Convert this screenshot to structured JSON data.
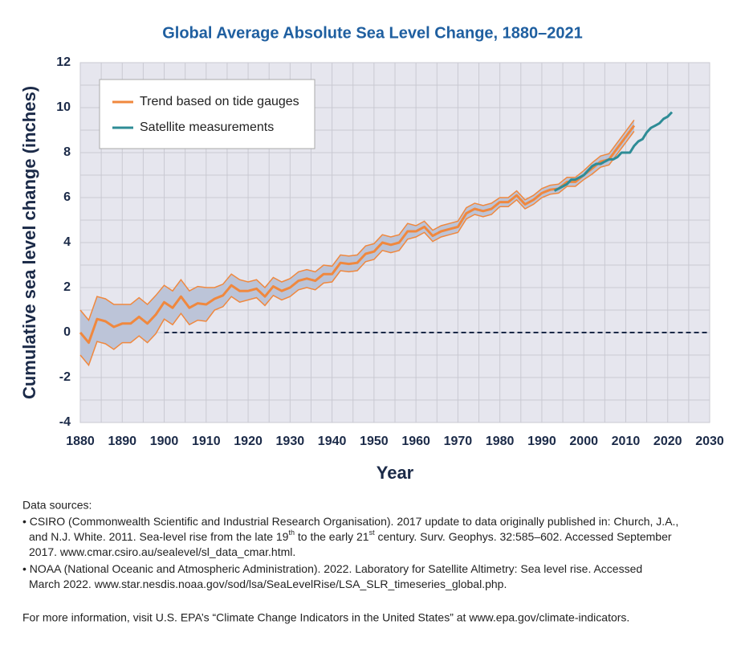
{
  "chart_data": {
    "type": "line",
    "title": "Global Average Absolute Sea Level Change, 1880–2021",
    "xlabel": "Year",
    "ylabel": "Cumulative sea level change (inches)",
    "xlim": [
      1880,
      2030
    ],
    "xticks": [
      1880,
      1890,
      1900,
      1910,
      1920,
      1930,
      1940,
      1950,
      1960,
      1970,
      1980,
      1990,
      2000,
      2010,
      2020,
      2030
    ],
    "ylim": [
      -4,
      12
    ],
    "yticks": [
      -4,
      -2,
      0,
      2,
      4,
      6,
      8,
      10,
      12
    ],
    "grid": true,
    "legend": "upper left",
    "series": [
      {
        "name": "Trend based on tide gauges",
        "color": "#f0883e",
        "band_color": "#bcc4d8",
        "x": [
          1880,
          1882,
          1884,
          1886,
          1888,
          1890,
          1892,
          1894,
          1896,
          1898,
          1900,
          1902,
          1904,
          1906,
          1908,
          1910,
          1912,
          1914,
          1916,
          1918,
          1920,
          1922,
          1924,
          1926,
          1928,
          1930,
          1932,
          1934,
          1936,
          1938,
          1940,
          1942,
          1944,
          1946,
          1948,
          1950,
          1952,
          1954,
          1956,
          1958,
          1960,
          1962,
          1964,
          1966,
          1968,
          1970,
          1972,
          1974,
          1976,
          1978,
          1980,
          1982,
          1984,
          1986,
          1988,
          1990,
          1992,
          1994,
          1996,
          1998,
          2000,
          2002,
          2004,
          2006,
          2008,
          2010,
          2012
        ],
        "values": [
          0.0,
          -0.45,
          0.6,
          0.5,
          0.25,
          0.4,
          0.4,
          0.7,
          0.4,
          0.8,
          1.35,
          1.1,
          1.6,
          1.1,
          1.3,
          1.25,
          1.5,
          1.65,
          2.1,
          1.85,
          1.85,
          1.95,
          1.6,
          2.05,
          1.85,
          2.0,
          2.3,
          2.4,
          2.3,
          2.6,
          2.6,
          3.1,
          3.05,
          3.1,
          3.5,
          3.6,
          4.0,
          3.9,
          4.0,
          4.5,
          4.5,
          4.7,
          4.3,
          4.5,
          4.6,
          4.7,
          5.3,
          5.5,
          5.4,
          5.5,
          5.8,
          5.8,
          6.1,
          5.7,
          5.9,
          6.2,
          6.35,
          6.4,
          6.7,
          6.7,
          7.0,
          7.3,
          7.6,
          7.7,
          8.2,
          8.7,
          9.2
        ],
        "lower": [
          -1.0,
          -1.45,
          -0.4,
          -0.5,
          -0.75,
          -0.45,
          -0.45,
          -0.15,
          -0.45,
          -0.05,
          0.6,
          0.35,
          0.85,
          0.35,
          0.55,
          0.5,
          1.0,
          1.15,
          1.6,
          1.35,
          1.45,
          1.55,
          1.2,
          1.65,
          1.45,
          1.6,
          1.9,
          2.0,
          1.9,
          2.2,
          2.25,
          2.75,
          2.7,
          2.75,
          3.15,
          3.25,
          3.65,
          3.55,
          3.65,
          4.15,
          4.25,
          4.45,
          4.05,
          4.25,
          4.35,
          4.45,
          5.05,
          5.25,
          5.15,
          5.25,
          5.6,
          5.6,
          5.9,
          5.5,
          5.7,
          6.0,
          6.15,
          6.2,
          6.5,
          6.5,
          6.8,
          7.05,
          7.35,
          7.45,
          7.95,
          8.45,
          8.95
        ],
        "upper": [
          1.0,
          0.55,
          1.6,
          1.5,
          1.25,
          1.25,
          1.25,
          1.55,
          1.25,
          1.65,
          2.1,
          1.85,
          2.35,
          1.85,
          2.05,
          2.0,
          2.0,
          2.15,
          2.6,
          2.35,
          2.25,
          2.35,
          2.0,
          2.45,
          2.25,
          2.4,
          2.7,
          2.8,
          2.7,
          3.0,
          2.95,
          3.45,
          3.4,
          3.45,
          3.85,
          3.95,
          4.35,
          4.25,
          4.35,
          4.85,
          4.75,
          4.95,
          4.55,
          4.75,
          4.85,
          4.95,
          5.55,
          5.75,
          5.65,
          5.75,
          6.0,
          6.0,
          6.3,
          5.9,
          6.1,
          6.4,
          6.55,
          6.6,
          6.9,
          6.9,
          7.2,
          7.55,
          7.85,
          7.95,
          8.45,
          8.95,
          9.45
        ]
      },
      {
        "name": "Satellite measurements",
        "color": "#2e8c96",
        "x": [
          1993,
          1994,
          1995,
          1996,
          1997,
          1998,
          1999,
          2000,
          2001,
          2002,
          2003,
          2004,
          2005,
          2006,
          2007,
          2008,
          2009,
          2010,
          2011,
          2012,
          2013,
          2014,
          2015,
          2016,
          2017,
          2018,
          2019,
          2020,
          2021
        ],
        "values": [
          6.3,
          6.4,
          6.5,
          6.6,
          6.8,
          6.8,
          6.9,
          7.0,
          7.2,
          7.4,
          7.5,
          7.5,
          7.6,
          7.7,
          7.7,
          7.8,
          8.0,
          8.0,
          8.0,
          8.3,
          8.5,
          8.6,
          8.9,
          9.1,
          9.2,
          9.3,
          9.5,
          9.6,
          9.8
        ]
      }
    ]
  },
  "notes": {
    "heading": "Data sources:",
    "sources": [
      [
        [
          "• CSIRO (Commonwealth Scientific and Industrial Research Organisation). 2017 update to data originally published in: Church, J.A.,"
        ],
        [
          "and N.J. White. 2011. Sea-level rise from the late 19",
          "th",
          " to the early 21",
          "st",
          " century. Surv. Geophys. 32:585–602. Accessed September"
        ],
        [
          "2017. www.cmar.csiro.au/sealevel/sl_data_cmar.html."
        ]
      ],
      [
        [
          "• NOAA (National Oceanic and Atmospheric Administration). 2022. Laboratory for Satellite Altimetry: Sea level rise. Accessed"
        ],
        [
          "March 2022. www.star.nesdis.noaa.gov/sod/lsa/SeaLevelRise/LSA_SLR_timeseries_global.php."
        ]
      ]
    ],
    "more": "For more information, visit U.S. EPA’s “Climate Change Indicators in the United States” at www.epa.gov/climate-indicators."
  }
}
